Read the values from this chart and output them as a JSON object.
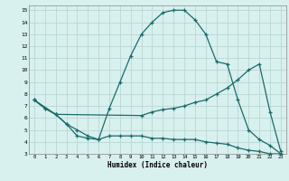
{
  "xlabel": "Humidex (Indice chaleur)",
  "bg_color": "#d8f0ee",
  "grid_color": "#b8d8d4",
  "line_color": "#1a6b6b",
  "xlim": [
    -0.5,
    23.5
  ],
  "ylim": [
    3,
    15.4
  ],
  "xticks": [
    0,
    1,
    2,
    3,
    4,
    5,
    6,
    7,
    8,
    9,
    10,
    11,
    12,
    13,
    14,
    15,
    16,
    17,
    18,
    19,
    20,
    21,
    22,
    23
  ],
  "yticks": [
    3,
    4,
    5,
    6,
    7,
    8,
    9,
    10,
    11,
    12,
    13,
    14,
    15
  ],
  "line1_x": [
    0,
    1,
    2,
    3,
    4,
    5,
    6,
    7,
    8,
    9,
    10,
    11,
    12,
    13,
    14,
    15,
    16,
    17,
    18,
    19,
    20,
    21,
    22,
    23
  ],
  "line1_y": [
    7.5,
    6.8,
    6.3,
    5.5,
    5.0,
    4.5,
    4.2,
    6.8,
    9.0,
    11.2,
    13.0,
    14.0,
    14.8,
    15.0,
    15.0,
    14.2,
    13.0,
    10.7,
    10.5,
    7.5,
    5.0,
    4.2,
    3.7,
    3.0
  ],
  "line2_x": [
    0,
    2,
    10,
    11,
    12,
    13,
    14,
    15,
    16,
    17,
    18,
    19,
    20,
    21,
    22,
    23
  ],
  "line2_y": [
    7.5,
    6.3,
    6.2,
    6.5,
    6.7,
    6.8,
    7.0,
    7.3,
    7.5,
    8.0,
    8.5,
    9.2,
    10.0,
    10.5,
    6.5,
    3.2
  ],
  "line3_x": [
    0,
    1,
    2,
    3,
    4,
    5,
    6,
    7,
    8,
    9,
    10,
    11,
    12,
    13,
    14,
    15,
    16,
    17,
    18,
    19,
    20,
    21,
    22,
    23
  ],
  "line3_y": [
    7.5,
    6.8,
    6.3,
    5.5,
    4.5,
    4.3,
    4.2,
    4.5,
    4.5,
    4.5,
    4.5,
    4.3,
    4.3,
    4.2,
    4.2,
    4.2,
    4.0,
    3.9,
    3.8,
    3.5,
    3.3,
    3.2,
    3.0,
    3.0
  ]
}
